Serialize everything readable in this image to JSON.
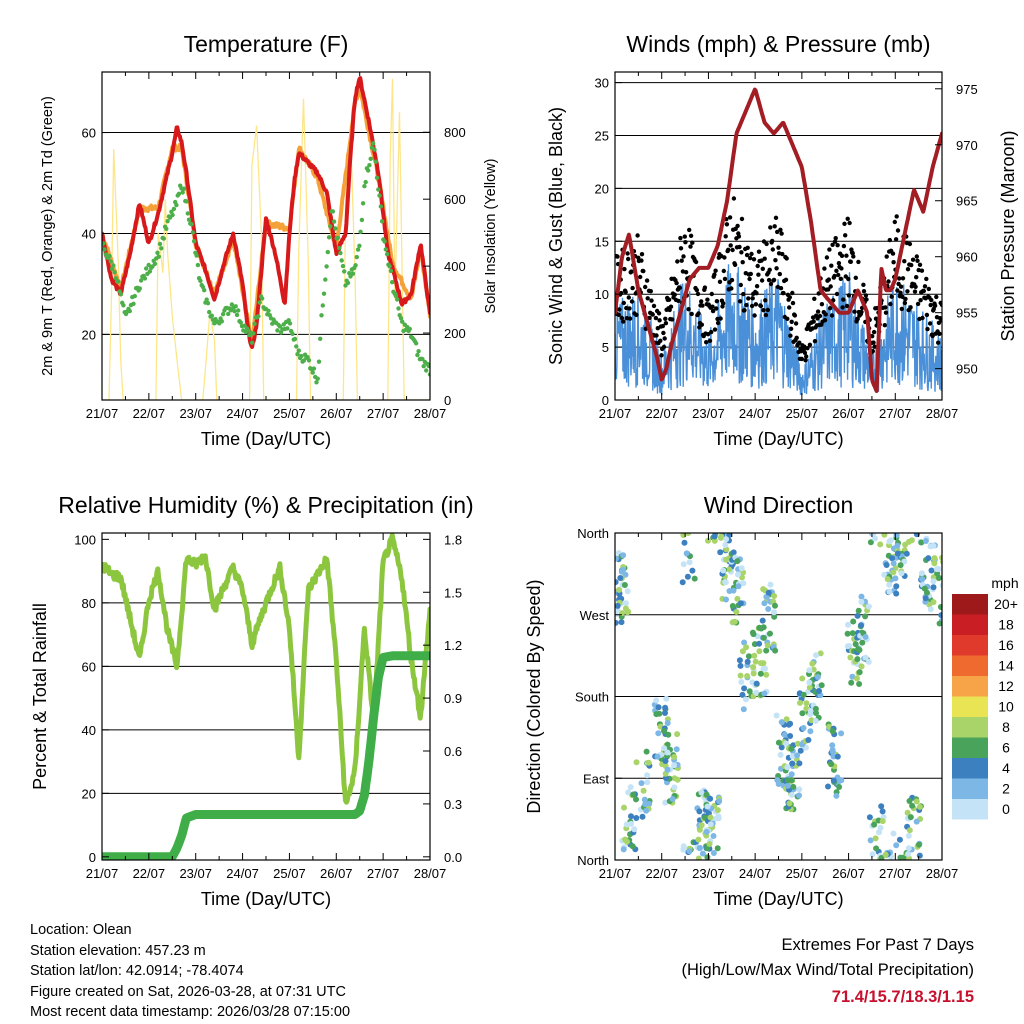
{
  "chart_data": [
    {
      "id": "temp",
      "type": "line",
      "title": "Temperature (F)",
      "xlabel": "Time (Day/UTC)",
      "ylabel": "2m & 9m T (Red, Orange) & 2m Td (Green)",
      "y2label": "Solar Insolation (Yellow)",
      "xticks": [
        "21/07",
        "22/07",
        "23/07",
        "24/07",
        "25/07",
        "26/07",
        "27/07",
        "28/07"
      ],
      "xlim": [
        0,
        7
      ],
      "ylim": [
        7,
        72
      ],
      "yticks": [
        20,
        40,
        60
      ],
      "y2lim": [
        0,
        980
      ],
      "y2ticks": [
        0,
        200,
        400,
        600,
        800
      ],
      "grid_y": [
        20,
        40,
        60
      ],
      "series": [
        {
          "name": "2m T",
          "color": "#d7191c",
          "x": [
            0,
            0.2,
            0.4,
            0.6,
            0.8,
            1,
            1.2,
            1.4,
            1.5,
            1.6,
            1.7,
            1.8,
            2,
            2.2,
            2.4,
            2.6,
            2.8,
            3,
            3.1,
            3.2,
            3.3,
            3.5,
            3.7,
            3.9,
            4,
            4.1,
            4.2,
            4.4,
            4.6,
            4.8,
            5,
            5.2,
            5.3,
            5.4,
            5.5,
            5.7,
            5.9,
            6,
            6.1,
            6.2,
            6.4,
            6.6,
            6.8,
            7
          ],
          "values": [
            40,
            31,
            28,
            36,
            46,
            38,
            44,
            52,
            56,
            61,
            58,
            52,
            38,
            33,
            27,
            34,
            40,
            30,
            22,
            17,
            22,
            43,
            36,
            26,
            40,
            50,
            56,
            54,
            52,
            48,
            36,
            40,
            55,
            67,
            71,
            62,
            52,
            44,
            36,
            33,
            26,
            28,
            38,
            24
          ]
        },
        {
          "name": "9m T",
          "color": "#f4a13a",
          "x": [
            0,
            0.4,
            0.8,
            1.2,
            1.5,
            1.7,
            2,
            2.4,
            2.8,
            3.2,
            3.5,
            4,
            4.2,
            4.6,
            5,
            5.4,
            5.5,
            5.9,
            6.2,
            6.6,
            6.8,
            7
          ],
          "values": [
            40,
            29,
            45,
            45,
            57,
            57,
            38,
            28,
            39,
            18,
            42,
            41,
            57,
            51,
            37,
            66,
            69,
            51,
            34,
            27,
            37,
            24
          ]
        },
        {
          "name": "2m Td",
          "color": "#4daf4a",
          "x": [
            0,
            0.3,
            0.5,
            0.8,
            1.0,
            1.2,
            1.4,
            1.6,
            1.7,
            1.9,
            2.1,
            2.4,
            2.6,
            2.8,
            3.0,
            3.2,
            3.4,
            3.6,
            3.8,
            4.0,
            4.2,
            4.4,
            4.6,
            4.7,
            4.8,
            4.9,
            5.0,
            5.2,
            5.4,
            5.5,
            5.6,
            5.8,
            6.0,
            6.2,
            6.4,
            6.6,
            6.8,
            7
          ],
          "values": [
            38,
            32,
            23,
            30,
            33,
            36,
            42,
            46,
            50,
            42,
            30,
            22,
            24,
            26,
            22,
            19,
            27,
            23,
            21,
            22,
            16,
            15,
            11,
            25,
            35,
            45,
            40,
            30,
            33,
            38,
            50,
            58,
            40,
            30,
            22,
            20,
            15,
            13
          ]
        },
        {
          "name": "Solar Insolation",
          "color": "#fde68a",
          "axis": "y2",
          "x": [
            0,
            0.15,
            0.2,
            0.25,
            0.35,
            0.4,
            0.45,
            1.15,
            1.2,
            1.3,
            1.35,
            1.4,
            1.5,
            1.6,
            1.65,
            1.7,
            2.15,
            2.2,
            2.3,
            2.4,
            2.45,
            3.15,
            3.2,
            3.3,
            3.4,
            3.45,
            4.15,
            4.2,
            4.3,
            4.4,
            4.45,
            5.15,
            5.2,
            5.3,
            5.4,
            5.45,
            6.1,
            6.15,
            6.2,
            6.25,
            6.35,
            6.45,
            7
          ],
          "values": [
            0,
            0,
            300,
            750,
            400,
            120,
            0,
            0,
            500,
            380,
            600,
            440,
            250,
            120,
            60,
            0,
            0,
            80,
            260,
            180,
            0,
            0,
            700,
            820,
            500,
            0,
            0,
            450,
            900,
            420,
            0,
            0,
            620,
            820,
            380,
            0,
            0,
            720,
            960,
            300,
            860,
            0,
            0
          ]
        }
      ]
    },
    {
      "id": "wind",
      "type": "scatter",
      "title": "Winds (mph) & Pressure (mb)",
      "xlabel": "Time (Day/UTC)",
      "ylabel": "Sonic Wind & Gust (Blue, Black)",
      "y2label": "Station Pressure (Maroon)",
      "xticks": [
        "21/07",
        "22/07",
        "23/07",
        "24/07",
        "25/07",
        "26/07",
        "27/07",
        "28/07"
      ],
      "xlim": [
        0,
        7
      ],
      "ylim": [
        0,
        31
      ],
      "yticks": [
        0,
        5,
        10,
        15,
        20,
        25,
        30
      ],
      "y2lim": [
        947.2,
        976.5
      ],
      "y2ticks": [
        950,
        955,
        960,
        965,
        970,
        975
      ],
      "grid_y": [
        5,
        10,
        15,
        20,
        25,
        30
      ],
      "wind_env": {
        "x": [
          0,
          0.5,
          1,
          1.5,
          2,
          2.5,
          3,
          3.5,
          4,
          4.5,
          5,
          5.5,
          6,
          6.5,
          7
        ],
        "values": [
          6,
          7,
          3,
          8,
          4,
          9,
          6,
          8,
          2,
          6,
          8,
          3,
          8,
          6,
          4
        ]
      },
      "series": [
        {
          "name": "Station Pressure",
          "color": "#a31d24",
          "axis": "y2",
          "x": [
            0,
            0.15,
            0.3,
            0.5,
            0.7,
            0.9,
            1,
            1.1,
            1.2,
            1.4,
            1.6,
            1.8,
            2,
            2.2,
            2.4,
            2.6,
            2.8,
            3,
            3.2,
            3.4,
            3.6,
            3.8,
            4,
            4.2,
            4.4,
            4.6,
            4.8,
            5,
            5.2,
            5.4,
            5.5,
            5.6,
            5.7,
            5.8,
            5.9,
            6,
            6.2,
            6.4,
            6.6,
            6.8,
            7
          ],
          "values": [
            955,
            960,
            962,
            957,
            954,
            951,
            949,
            950,
            952,
            955,
            958,
            959,
            959,
            961,
            965,
            971,
            973,
            975,
            972,
            971,
            972,
            970,
            968,
            963,
            957,
            956,
            955,
            955,
            957,
            955,
            949,
            948,
            959,
            957,
            957,
            958,
            962,
            966,
            964,
            968,
            971
          ]
        }
      ]
    },
    {
      "id": "rh",
      "type": "line",
      "title": "Relative Humidity (%) & Precipitation (in)",
      "xlabel": "Time (Day/UTC)",
      "ylabel": "Percent & Total Rainfall",
      "xticks": [
        "21/07",
        "22/07",
        "23/07",
        "24/07",
        "25/07",
        "26/07",
        "27/07",
        "28/07"
      ],
      "xlim": [
        0,
        7
      ],
      "ylim": [
        -1,
        102
      ],
      "yticks": [
        0,
        20,
        40,
        60,
        80,
        100
      ],
      "y2lim": [
        -0.018,
        1.836
      ],
      "y2ticks": [
        "0.0",
        "0.3",
        "0.6",
        "0.9",
        "1.2",
        "1.5",
        "1.8"
      ],
      "grid_y": [
        20,
        40,
        60,
        80
      ],
      "series": [
        {
          "name": "Relative Humidity",
          "color": "#8cc63f",
          "x": [
            0,
            0.2,
            0.4,
            0.6,
            0.8,
            1,
            1.2,
            1.4,
            1.6,
            1.8,
            2,
            2.2,
            2.4,
            2.6,
            2.8,
            3,
            3.2,
            3.4,
            3.6,
            3.8,
            4,
            4.2,
            4.4,
            4.6,
            4.8,
            5,
            5.2,
            5.4,
            5.6,
            5.8,
            6,
            6.2,
            6.4,
            6.6,
            6.8,
            7
          ],
          "values": [
            92,
            89,
            88,
            75,
            62,
            81,
            90,
            71,
            60,
            94,
            92,
            95,
            78,
            85,
            91,
            84,
            67,
            76,
            84,
            91,
            72,
            31,
            84,
            89,
            94,
            62,
            16,
            27,
            72,
            42,
            93,
            100,
            88,
            62,
            44,
            78
          ]
        },
        {
          "name": "Total Precipitation",
          "color": "#3fae49",
          "axis": "y2",
          "x": [
            0,
            1.5,
            1.6,
            1.7,
            1.8,
            2.0,
            5.4,
            5.5,
            5.6,
            5.7,
            5.8,
            5.9,
            6.0,
            6.2,
            7
          ],
          "values": [
            0,
            0,
            0.05,
            0.12,
            0.22,
            0.24,
            0.24,
            0.26,
            0.35,
            0.55,
            0.8,
            1.02,
            1.13,
            1.14,
            1.14
          ]
        }
      ]
    },
    {
      "id": "dir",
      "type": "scatter",
      "title": "Wind Direction",
      "xlabel": "Time (Day/UTC)",
      "ylabel": "Direction (Colored By Speed)",
      "xticks": [
        "21/07",
        "22/07",
        "23/07",
        "24/07",
        "25/07",
        "26/07",
        "27/07",
        "28/07"
      ],
      "xlim": [
        0,
        7
      ],
      "ylim": [
        0,
        360
      ],
      "ytick_labels": [
        "North",
        "East",
        "South",
        "West",
        "North"
      ],
      "legend_unit": "mph",
      "legend_labels": [
        "20+",
        "18",
        "16",
        "14",
        "12",
        "10",
        "8",
        "6",
        "4",
        "2",
        "0"
      ],
      "legend_colors": [
        "#9e1a1a",
        "#c91f24",
        "#e03a2c",
        "#ef6a2f",
        "#f7a348",
        "#e8e454",
        "#a9d46a",
        "#4aa35a",
        "#3d80c0",
        "#7db7e5",
        "#c5e3f7"
      ],
      "clusters": [
        {
          "x": 0.15,
          "dir": 300,
          "n": 18
        },
        {
          "x": 0.3,
          "dir": 50,
          "n": 12
        },
        {
          "x": 0.6,
          "dir": 80,
          "n": 10
        },
        {
          "x": 1.0,
          "dir": 140,
          "n": 14
        },
        {
          "x": 1.2,
          "dir": 100,
          "n": 18
        },
        {
          "x": 1.6,
          "dir": 340,
          "n": 10
        },
        {
          "x": 1.9,
          "dir": 40,
          "n": 20
        },
        {
          "x": 2.1,
          "dir": 30,
          "n": 16
        },
        {
          "x": 2.4,
          "dir": 320,
          "n": 14
        },
        {
          "x": 2.6,
          "dir": 300,
          "n": 16
        },
        {
          "x": 2.8,
          "dir": 200,
          "n": 10
        },
        {
          "x": 3.1,
          "dir": 220,
          "n": 16
        },
        {
          "x": 3.3,
          "dir": 270,
          "n": 14
        },
        {
          "x": 3.6,
          "dir": 120,
          "n": 16
        },
        {
          "x": 3.8,
          "dir": 90,
          "n": 18
        },
        {
          "x": 4.1,
          "dir": 160,
          "n": 14
        },
        {
          "x": 4.3,
          "dir": 190,
          "n": 14
        },
        {
          "x": 4.7,
          "dir": 110,
          "n": 16
        },
        {
          "x": 5.1,
          "dir": 230,
          "n": 12
        },
        {
          "x": 5.3,
          "dir": 250,
          "n": 14
        },
        {
          "x": 5.6,
          "dir": 20,
          "n": 12
        },
        {
          "x": 5.9,
          "dir": 330,
          "n": 18
        },
        {
          "x": 6.1,
          "dir": 350,
          "n": 14
        },
        {
          "x": 6.4,
          "dir": 30,
          "n": 16
        },
        {
          "x": 6.7,
          "dir": 320,
          "n": 16
        },
        {
          "x": 6.9,
          "dir": 300,
          "n": 10
        }
      ]
    }
  ],
  "info": {
    "location": "Location: Olean",
    "elevation": "Station elevation: 457.23 m",
    "latlon": "Station lat/lon: 42.0914; -78.4074",
    "created": "Figure created on Sat, 2026-03-28, at 07:31 UTC",
    "latest": "Most recent data timestamp: 2026/03/28 07:15:00"
  },
  "extremes": {
    "heading": "Extremes For Past 7 Days",
    "subheading": "(High/Low/Max Wind/Total Precipitation)",
    "values": "71.4/15.7/18.3/1.15"
  }
}
